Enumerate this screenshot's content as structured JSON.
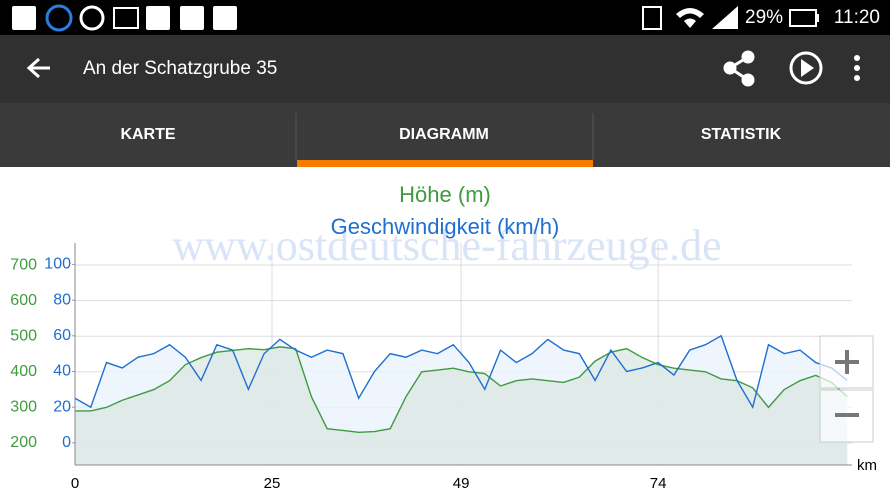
{
  "status_bar": {
    "battery": "29%",
    "time": "11:20"
  },
  "toolbar": {
    "title": "An der Schatzgrube 35"
  },
  "tabs": [
    "KARTE",
    "DIAGRAMM",
    "STATISTIK"
  ],
  "watermark": "www.ostdeutsche-fahrzeuge.de",
  "chart_data": {
    "type": "line",
    "x_label": "km",
    "xlim": [
      0,
      98.6
    ],
    "xticks": [
      0,
      25,
      49,
      74
    ],
    "ylim": [
      138,
      762
    ],
    "yticks": [
      200,
      300,
      400,
      500,
      600,
      700
    ],
    "y2lim": [
      -12.4,
      112
    ],
    "y2ticks": [
      0,
      20,
      40,
      60,
      80,
      100
    ],
    "grid": true,
    "x": [
      0,
      2,
      4,
      6,
      8,
      10,
      12,
      14,
      16,
      18,
      20,
      22,
      24,
      26,
      28,
      30,
      32,
      34,
      36,
      38,
      40,
      42,
      44,
      46,
      48,
      50,
      52,
      54,
      56,
      58,
      60,
      62,
      64,
      66,
      68,
      70,
      72,
      74,
      76,
      78,
      80,
      82,
      84,
      86,
      88,
      90,
      92,
      94,
      96,
      98
    ],
    "series": [
      {
        "name": "Höhe (m)",
        "color": "#3f9b3f",
        "fill": "#dce8e4",
        "values": [
          290,
          290,
          300,
          320,
          335,
          350,
          375,
          420,
          440,
          455,
          460,
          465,
          462,
          470,
          465,
          330,
          240,
          235,
          230,
          232,
          240,
          330,
          400,
          405,
          410,
          400,
          395,
          360,
          375,
          380,
          375,
          370,
          385,
          430,
          455,
          465,
          440,
          420,
          410,
          405,
          400,
          380,
          375,
          355,
          300,
          350,
          375,
          390,
          370,
          330
        ]
      },
      {
        "name": "Geschwindigkeit (km/h)",
        "color": "#1f6fd0",
        "fill": "#eaf2fc",
        "axis": "y2",
        "values": [
          25,
          20,
          45,
          42,
          48,
          50,
          55,
          48,
          35,
          55,
          52,
          30,
          50,
          58,
          52,
          48,
          52,
          50,
          25,
          40,
          50,
          48,
          52,
          50,
          55,
          45,
          30,
          52,
          45,
          50,
          58,
          52,
          50,
          35,
          52,
          40,
          42,
          45,
          38,
          52,
          55,
          60,
          35,
          20,
          55,
          50,
          52,
          45,
          42,
          35
        ]
      }
    ]
  }
}
